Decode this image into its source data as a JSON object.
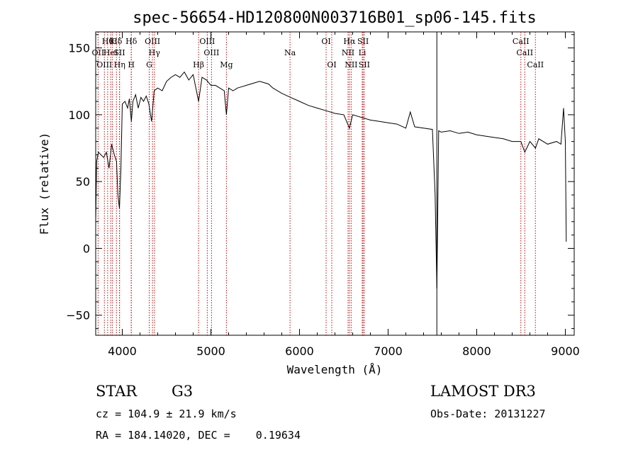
{
  "chart_data": {
    "type": "line",
    "title": "spec-56654-HD120800N003716B01_sp06-145.fits",
    "xlabel": "Wavelength (Å)",
    "ylabel": "Flux (relative)",
    "xlim": [
      3700,
      9100
    ],
    "ylim": [
      -65,
      162
    ],
    "xticks": [
      4000,
      5000,
      6000,
      7000,
      8000,
      9000
    ],
    "yticks": [
      -50,
      0,
      50,
      100,
      150
    ],
    "grid": false,
    "series": [
      {
        "x": [
          3700,
          3710,
          3730,
          3760,
          3790,
          3820,
          3850,
          3880,
          3910,
          3935,
          3950,
          3968,
          3985,
          4000,
          4030,
          4060,
          4080,
          4102,
          4120,
          4150,
          4180,
          4210,
          4240,
          4270,
          4300,
          4330,
          4360,
          4400,
          4450,
          4500,
          4550,
          4600,
          4650,
          4700,
          4750,
          4800,
          4861,
          4900,
          4950,
          5000,
          5050,
          5100,
          5150,
          5175,
          5200,
          5250,
          5300,
          5350,
          5400,
          5450,
          5500,
          5550,
          5600,
          5650,
          5700,
          5800,
          5900,
          6000,
          6100,
          6200,
          6300,
          6400,
          6500,
          6563,
          6600,
          6700,
          6800,
          6900,
          7000,
          7100,
          7200,
          7250,
          7300,
          7400,
          7500,
          7530,
          7550,
          7570,
          7600,
          7700,
          7800,
          7900,
          8000,
          8100,
          8200,
          8300,
          8400,
          8498,
          8542,
          8600,
          8662,
          8700,
          8800,
          8900,
          8950,
          8980,
          9000,
          9010
        ],
        "values": [
          20,
          65,
          72,
          70,
          68,
          72,
          60,
          78,
          70,
          65,
          40,
          30,
          60,
          108,
          110,
          105,
          112,
          95,
          110,
          115,
          105,
          113,
          110,
          114,
          108,
          95,
          118,
          120,
          118,
          125,
          128,
          130,
          128,
          132,
          126,
          130,
          110,
          128,
          126,
          122,
          122,
          120,
          118,
          100,
          120,
          118,
          120,
          121,
          122,
          123,
          124,
          125,
          124,
          123,
          120,
          116,
          113,
          110,
          107,
          105,
          103,
          101,
          100,
          90,
          100,
          98,
          96,
          95,
          94,
          93,
          90,
          102,
          91,
          90,
          89,
          40,
          -30,
          88,
          87,
          88,
          86,
          87,
          85,
          84,
          83,
          82,
          80,
          80,
          72,
          80,
          75,
          82,
          78,
          80,
          78,
          105,
          80,
          5
        ]
      }
    ],
    "lines": [
      {
        "x": 3835,
        "label": "Hθ",
        "row": 1
      },
      {
        "x": 3889,
        "label": "K",
        "row": 1
      },
      {
        "x": 3934,
        "label": "Hδ",
        "row": 1
      },
      {
        "x": 4102,
        "label": "Hδ",
        "row": 1
      },
      {
        "x": 3727,
        "label": "OII",
        "row": 2
      },
      {
        "x": 3869,
        "label": "HeI",
        "row": 2
      },
      {
        "x": 3968,
        "label": "SII",
        "row": 2
      },
      {
        "x": 3798,
        "label": "OIII",
        "row": 3
      },
      {
        "x": 3970,
        "label": "Hη",
        "row": 3
      },
      {
        "x": 4101,
        "label": "H",
        "row": 3
      },
      {
        "x": 4341,
        "label": "OIII",
        "row": 1
      },
      {
        "x": 4363,
        "label": "Hγ",
        "row": 2
      },
      {
        "x": 4304,
        "label": "G",
        "row": 3
      },
      {
        "x": 4861,
        "label": "Hβ",
        "row": 3
      },
      {
        "x": 4959,
        "label": "OIII",
        "row": 1
      },
      {
        "x": 5007,
        "label": "OIII",
        "row": 2
      },
      {
        "x": 5175,
        "label": "Mg",
        "row": 3
      },
      {
        "x": 5893,
        "label": "Na",
        "row": 2
      },
      {
        "x": 6300,
        "label": "OI",
        "row": 1
      },
      {
        "x": 6364,
        "label": "OI",
        "row": 3
      },
      {
        "x": 6563,
        "label": "Hα",
        "row": 1
      },
      {
        "x": 6548,
        "label": "NII",
        "row": 2
      },
      {
        "x": 6583,
        "label": "NII",
        "row": 3
      },
      {
        "x": 6717,
        "label": "SII",
        "row": 1
      },
      {
        "x": 6708,
        "label": "Li",
        "row": 2
      },
      {
        "x": 6731,
        "label": "SII",
        "row": 3
      },
      {
        "x": 8498,
        "label": "CaII",
        "row": 1
      },
      {
        "x": 8542,
        "label": "CaII",
        "row": 2
      },
      {
        "x": 8662,
        "label": "CaII",
        "row": 3
      }
    ],
    "marker_x": 7550,
    "line_color": "#000000",
    "ref_line_color": "#cc0000"
  },
  "info": {
    "class_label": "STAR",
    "subclass": "G3",
    "survey": "LAMOST DR3",
    "cz": "cz = 104.9 ± 21.9 km/s",
    "obs_date": "Obs-Date: 20131227",
    "coords": "RA = 184.14020, DEC =    0.19634"
  }
}
